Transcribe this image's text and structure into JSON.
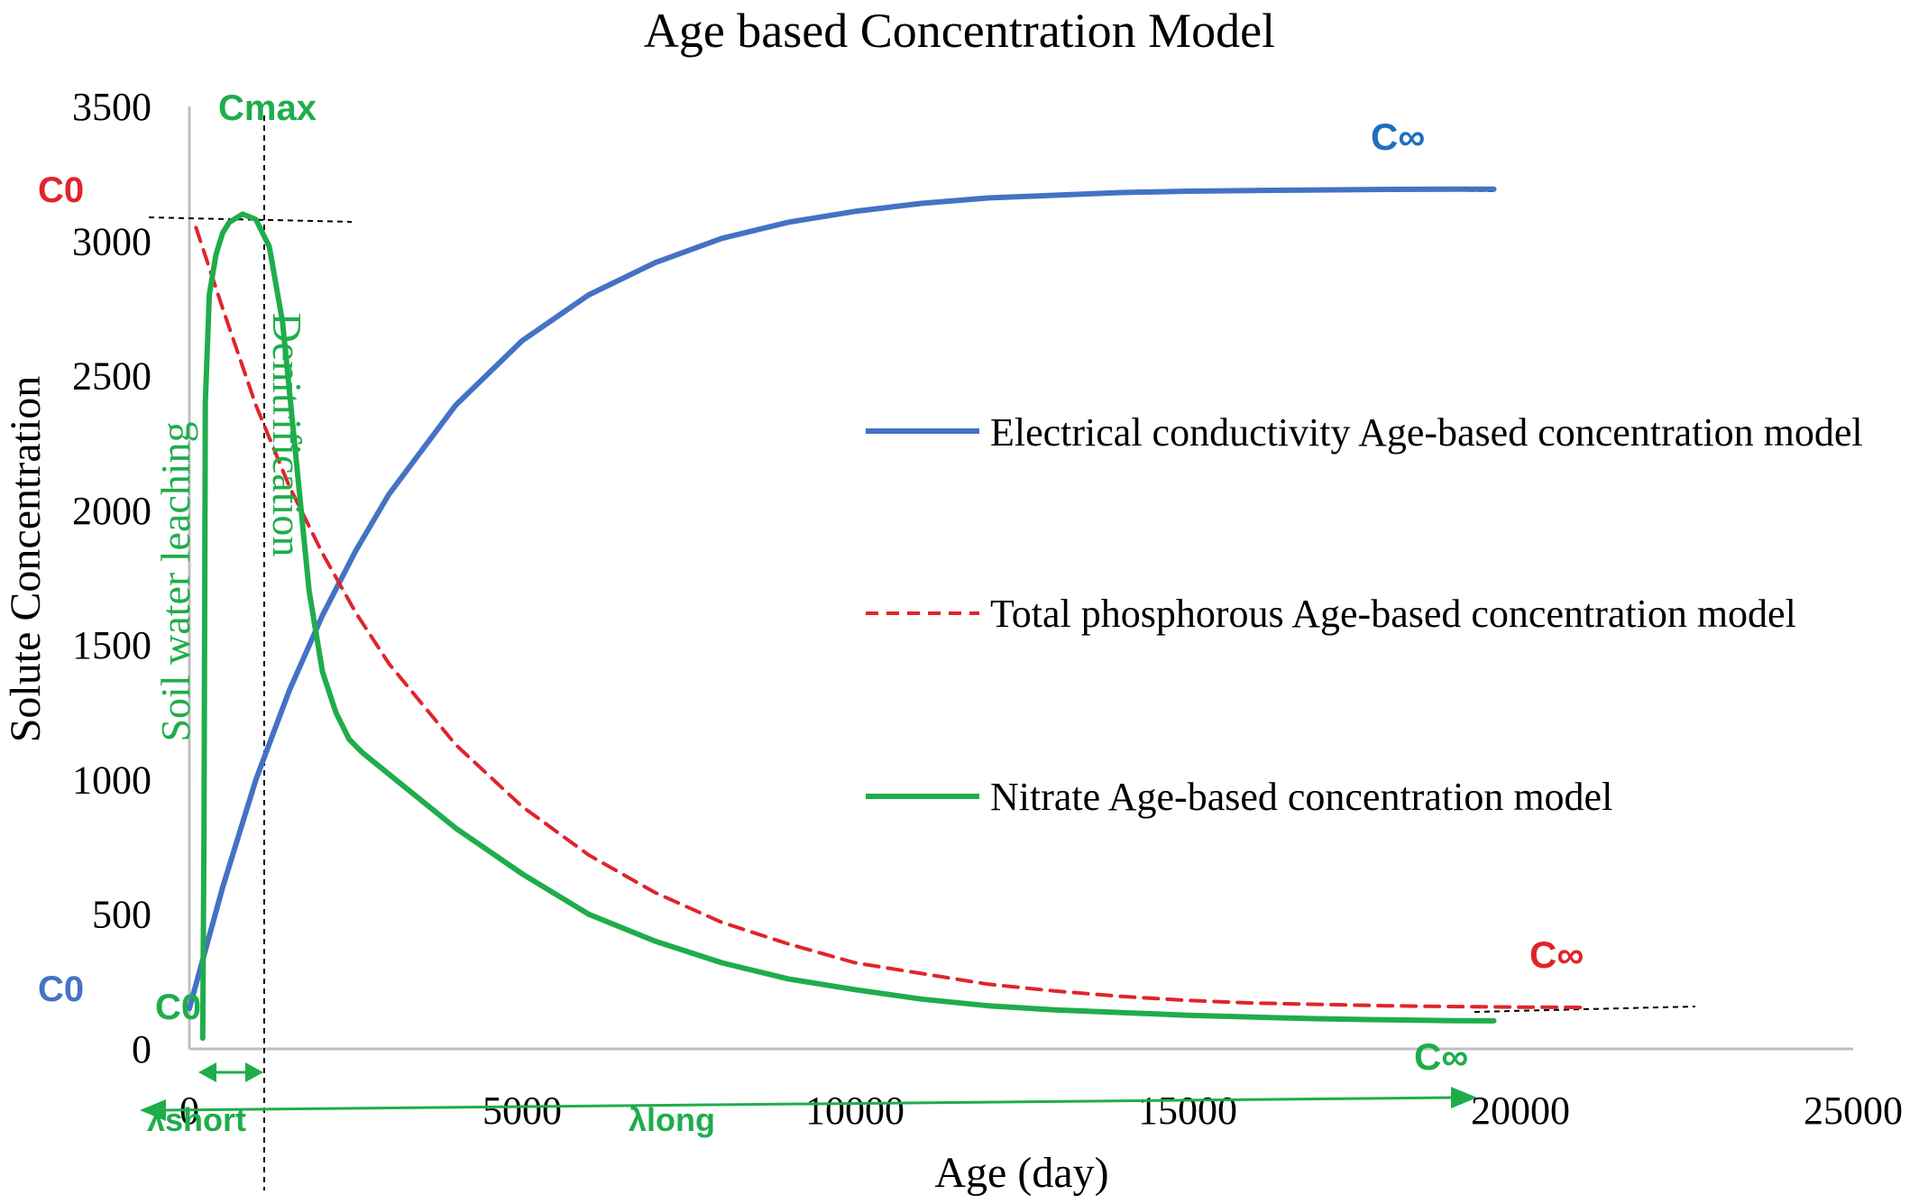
{
  "chart_data": {
    "type": "line",
    "title": "Age based Concentration Model",
    "xlabel": "Age (day)",
    "ylabel": "Solute Concentration",
    "xlim": [
      0,
      25000
    ],
    "ylim": [
      0,
      3500
    ],
    "x_ticks": [
      0,
      5000,
      10000,
      15000,
      20000,
      25000
    ],
    "x_tick_labels": [
      "0",
      "5000",
      "10000",
      "15000",
      "20000",
      "25000"
    ],
    "y_ticks": [
      0,
      500,
      1000,
      1500,
      2000,
      2500,
      3000,
      3500
    ],
    "y_tick_labels": [
      "0",
      "500",
      "1000",
      "1500",
      "2000",
      "2500",
      "3000",
      "3500"
    ],
    "grid": false,
    "legend": "right",
    "series": [
      {
        "name": "Electrical conductivity Age-based concentration model",
        "color": "#4472C4",
        "style": "solid",
        "x": [
          0,
          500,
          1000,
          1500,
          2000,
          2500,
          3000,
          4000,
          5000,
          6000,
          7000,
          8000,
          9000,
          10000,
          11000,
          12000,
          13000,
          14000,
          15000,
          16000,
          17000,
          18000,
          19000,
          19600
        ],
        "y": [
          150,
          600,
          1000,
          1330,
          1610,
          1850,
          2060,
          2390,
          2630,
          2800,
          2920,
          3010,
          3070,
          3110,
          3140,
          3160,
          3170,
          3180,
          3185,
          3188,
          3190,
          3192,
          3193,
          3193
        ]
      },
      {
        "name": "Total phosphorous Age-based concentration model",
        "color": "#E0242B",
        "style": "dashed",
        "x": [
          100,
          500,
          1000,
          1500,
          2000,
          2500,
          3000,
          4000,
          5000,
          6000,
          7000,
          8000,
          9000,
          10000,
          11000,
          12000,
          13000,
          14000,
          15000,
          16000,
          17000,
          18000,
          19000,
          20000,
          21000
        ],
        "y": [
          3050,
          2750,
          2390,
          2090,
          1840,
          1620,
          1430,
          1130,
          900,
          720,
          580,
          470,
          390,
          320,
          280,
          240,
          215,
          195,
          180,
          170,
          165,
          160,
          157,
          155,
          154
        ]
      },
      {
        "name": "Nitrate Age-based concentration model",
        "color": "#1FAD4B",
        "style": "solid",
        "x": [
          200,
          220,
          240,
          300,
          400,
          500,
          600,
          800,
          1000,
          1200,
          1400,
          1600,
          1800,
          2000,
          2200,
          2400,
          2600,
          3000,
          4000,
          5000,
          6000,
          7000,
          8000,
          9000,
          10000,
          11000,
          12000,
          13000,
          14000,
          15000,
          16000,
          17000,
          18000,
          19000,
          19600
        ],
        "y": [
          40,
          800,
          2400,
          2800,
          2950,
          3030,
          3070,
          3100,
          3080,
          2980,
          2700,
          2200,
          1700,
          1400,
          1250,
          1150,
          1100,
          1020,
          820,
          650,
          500,
          400,
          320,
          260,
          220,
          185,
          160,
          145,
          135,
          125,
          118,
          112,
          108,
          105,
          104
        ]
      }
    ],
    "annotations": {
      "c0_red": "C0",
      "c0_blue": "C0",
      "c0_green": "C0",
      "cmax": "Cmax",
      "cinf_blue": "C∞",
      "cinf_red": "C∞",
      "cinf_green": "C∞",
      "lambda_short": "λshort",
      "lambda_long": "λlong",
      "soil_leaching": "Soil water leaching",
      "denitrification": "Denitrification"
    },
    "colors": {
      "axis": "#BFBFBF",
      "text": "#000000",
      "blue_label": "#1F6FBF",
      "green_label": "#1FAD4B",
      "red_label": "#E0242B",
      "guide": "#000000"
    }
  }
}
